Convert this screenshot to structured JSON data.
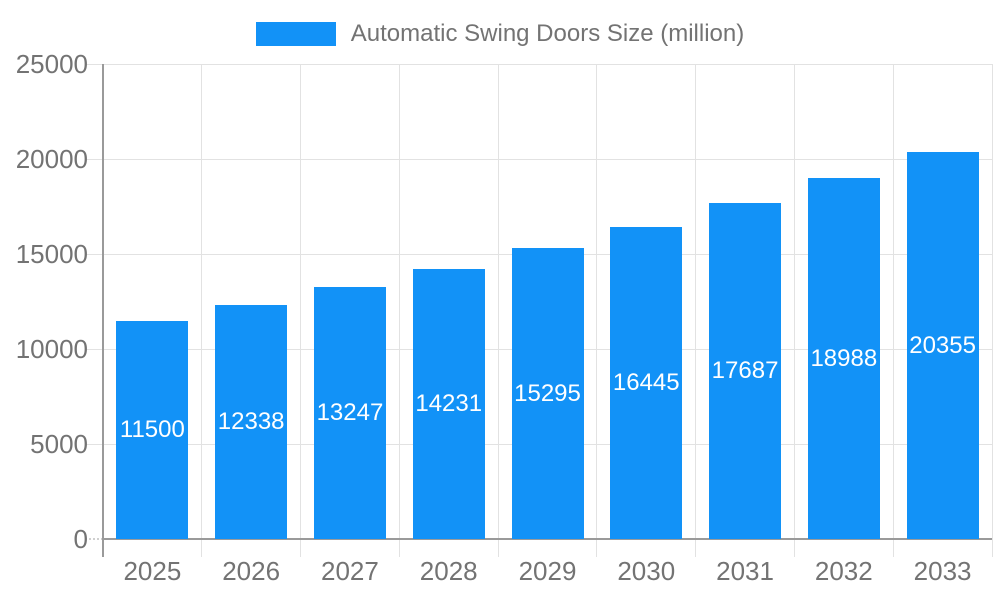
{
  "chart_data": {
    "type": "bar",
    "title": "Automatic Swing Doors Size (million)",
    "legend_position": "top",
    "categories": [
      "2025",
      "2026",
      "2027",
      "2028",
      "2029",
      "2030",
      "2031",
      "2032",
      "2033"
    ],
    "series": [
      {
        "name": "Automatic Swing Doors Size (million)",
        "values": [
          11500,
          12338,
          13247,
          14231,
          15295,
          16445,
          17687,
          18988,
          20355
        ]
      }
    ],
    "bar_value_labels": [
      "11500",
      "12338",
      "13247",
      "14231",
      "15295",
      "16445",
      "17687",
      "18988",
      "20355"
    ],
    "xlabel": "",
    "ylabel": "",
    "ylim": [
      0,
      25000
    ],
    "yticks": [
      0,
      5000,
      10000,
      15000,
      20000,
      25000
    ],
    "ytick_labels": [
      "0",
      "5000",
      "10000",
      "15000",
      "20000",
      "25000"
    ],
    "grid": true
  },
  "colors": {
    "bar": "#1292f7",
    "axis_text": "#737373",
    "grid_line": "#e2e2e2",
    "axis_line": "#9a9a9a",
    "bar_label": "#ffffff",
    "background": "#ffffff"
  }
}
